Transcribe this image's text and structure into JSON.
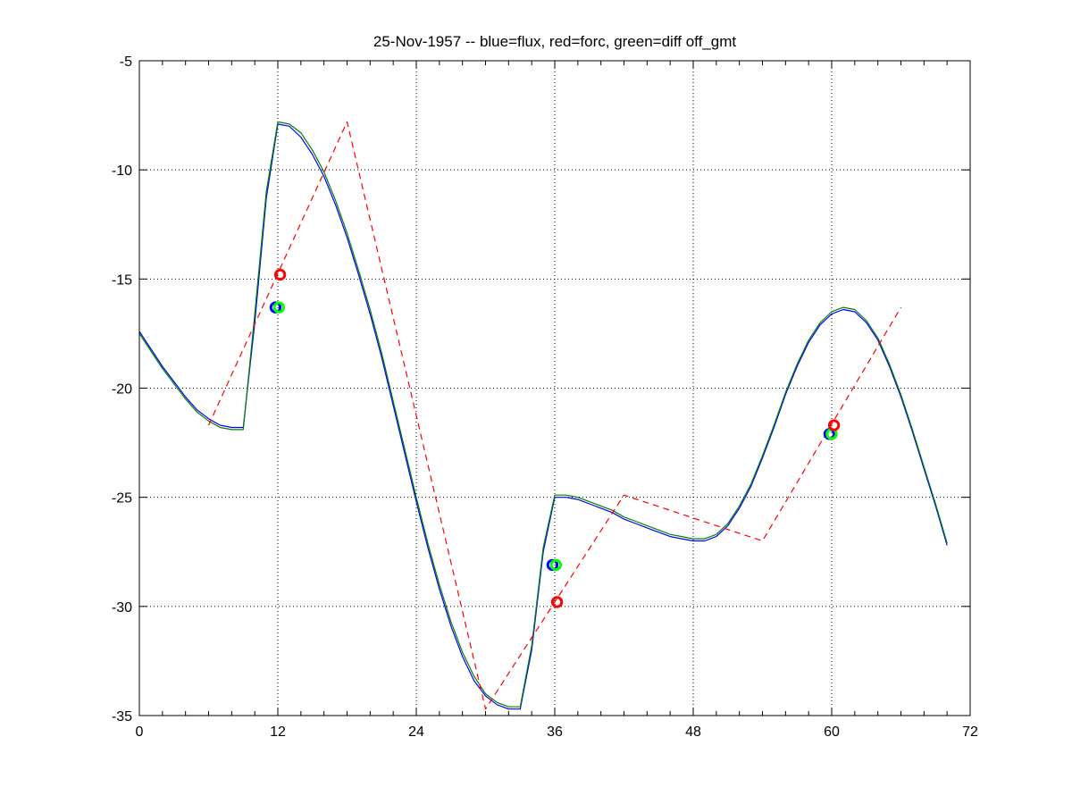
{
  "chart_data": {
    "type": "line",
    "title": "25-Nov-1957 -- blue=flux, red=forc, green=diff off_gmt",
    "xlabel": "",
    "ylabel": "",
    "xlim": [
      0,
      72
    ],
    "ylim": [
      -35,
      -5
    ],
    "xticks": [
      0,
      12,
      24,
      36,
      48,
      60,
      72
    ],
    "yticks": [
      -5,
      -10,
      -15,
      -20,
      -25,
      -30,
      -35
    ],
    "grid": true,
    "series": [
      {
        "color": "#0000ff",
        "style": "solid",
        "points": [
          [
            0,
            -17.4
          ],
          [
            1,
            -18.2
          ],
          [
            2,
            -19.0
          ],
          [
            3,
            -19.7
          ],
          [
            4,
            -20.4
          ],
          [
            5,
            -21.0
          ],
          [
            6,
            -21.4
          ],
          [
            7,
            -21.7
          ],
          [
            8,
            -21.8
          ],
          [
            9,
            -21.8
          ],
          [
            10,
            -17.0
          ],
          [
            11,
            -11.3
          ],
          [
            12,
            -7.9
          ],
          [
            13,
            -8.0
          ],
          [
            14,
            -8.5
          ],
          [
            15,
            -9.3
          ],
          [
            16,
            -10.3
          ],
          [
            17,
            -11.6
          ],
          [
            18,
            -13.1
          ],
          [
            19,
            -14.8
          ],
          [
            20,
            -16.6
          ],
          [
            21,
            -18.6
          ],
          [
            22,
            -20.8
          ],
          [
            23,
            -23.0
          ],
          [
            24,
            -25.2
          ],
          [
            25,
            -27.3
          ],
          [
            26,
            -29.2
          ],
          [
            27,
            -30.9
          ],
          [
            28,
            -32.3
          ],
          [
            29,
            -33.4
          ],
          [
            30,
            -34.1
          ],
          [
            31,
            -34.5
          ],
          [
            32,
            -34.7
          ],
          [
            33,
            -34.7
          ],
          [
            34,
            -32.0
          ],
          [
            35,
            -27.5
          ],
          [
            36,
            -25.0
          ],
          [
            37,
            -25.0
          ],
          [
            38,
            -25.1
          ],
          [
            39,
            -25.3
          ],
          [
            40,
            -25.5
          ],
          [
            41,
            -25.7
          ],
          [
            42,
            -26.0
          ],
          [
            43,
            -26.2
          ],
          [
            44,
            -26.4
          ],
          [
            45,
            -26.6
          ],
          [
            46,
            -26.8
          ],
          [
            47,
            -26.9
          ],
          [
            48,
            -27.0
          ],
          [
            49,
            -27.0
          ],
          [
            50,
            -26.8
          ],
          [
            51,
            -26.3
          ],
          [
            52,
            -25.5
          ],
          [
            53,
            -24.5
          ],
          [
            54,
            -23.2
          ],
          [
            55,
            -21.8
          ],
          [
            56,
            -20.3
          ],
          [
            57,
            -19.0
          ],
          [
            58,
            -17.9
          ],
          [
            59,
            -17.1
          ],
          [
            60,
            -16.6
          ],
          [
            61,
            -16.4
          ],
          [
            62,
            -16.5
          ],
          [
            63,
            -17.0
          ],
          [
            64,
            -17.8
          ],
          [
            65,
            -19.0
          ],
          [
            66,
            -20.4
          ],
          [
            67,
            -22.0
          ],
          [
            68,
            -23.7
          ],
          [
            69,
            -25.4
          ],
          [
            70,
            -27.2
          ]
        ]
      },
      {
        "color": "#008000",
        "style": "solid",
        "points": [
          [
            0,
            -17.5
          ],
          [
            1,
            -18.3
          ],
          [
            2,
            -19.1
          ],
          [
            3,
            -19.8
          ],
          [
            4,
            -20.5
          ],
          [
            5,
            -21.1
          ],
          [
            6,
            -21.5
          ],
          [
            7,
            -21.8
          ],
          [
            8,
            -21.9
          ],
          [
            9,
            -21.9
          ],
          [
            10,
            -16.6
          ],
          [
            11,
            -11.0
          ],
          [
            12,
            -7.8
          ],
          [
            13,
            -7.9
          ],
          [
            14,
            -8.3
          ],
          [
            15,
            -9.1
          ],
          [
            16,
            -10.1
          ],
          [
            17,
            -11.4
          ],
          [
            18,
            -12.9
          ],
          [
            19,
            -14.6
          ],
          [
            20,
            -16.4
          ],
          [
            21,
            -18.4
          ],
          [
            22,
            -20.6
          ],
          [
            23,
            -22.8
          ],
          [
            24,
            -25.0
          ],
          [
            25,
            -27.1
          ],
          [
            26,
            -29.0
          ],
          [
            27,
            -30.7
          ],
          [
            28,
            -32.1
          ],
          [
            29,
            -33.2
          ],
          [
            30,
            -34.0
          ],
          [
            31,
            -34.4
          ],
          [
            32,
            -34.6
          ],
          [
            33,
            -34.6
          ],
          [
            34,
            -31.8
          ],
          [
            35,
            -27.3
          ],
          [
            36,
            -24.9
          ],
          [
            37,
            -24.9
          ],
          [
            38,
            -25.0
          ],
          [
            39,
            -25.2
          ],
          [
            40,
            -25.4
          ],
          [
            41,
            -25.6
          ],
          [
            42,
            -25.9
          ],
          [
            43,
            -26.1
          ],
          [
            44,
            -26.3
          ],
          [
            45,
            -26.5
          ],
          [
            46,
            -26.7
          ],
          [
            47,
            -26.8
          ],
          [
            48,
            -26.9
          ],
          [
            49,
            -26.9
          ],
          [
            50,
            -26.7
          ],
          [
            51,
            -26.2
          ],
          [
            52,
            -25.4
          ],
          [
            53,
            -24.4
          ],
          [
            54,
            -23.1
          ],
          [
            55,
            -21.7
          ],
          [
            56,
            -20.2
          ],
          [
            57,
            -18.9
          ],
          [
            58,
            -17.8
          ],
          [
            59,
            -17.0
          ],
          [
            60,
            -16.5
          ],
          [
            61,
            -16.3
          ],
          [
            62,
            -16.4
          ],
          [
            63,
            -16.9
          ],
          [
            64,
            -17.7
          ],
          [
            65,
            -18.9
          ],
          [
            66,
            -20.3
          ],
          [
            67,
            -21.9
          ],
          [
            68,
            -23.6
          ],
          [
            69,
            -25.3
          ],
          [
            70,
            -27.1
          ]
        ]
      },
      {
        "color": "#ff0000",
        "style": "dashed",
        "points": [
          [
            6,
            -21.7
          ],
          [
            18,
            -7.8
          ],
          [
            30,
            -34.7
          ],
          [
            42,
            -24.9
          ],
          [
            54,
            -27.0
          ],
          [
            66,
            -16.3
          ]
        ]
      }
    ],
    "markers": [
      {
        "color": "#0000ff",
        "x": 11.8,
        "y": -16.3
      },
      {
        "color": "#00ff00",
        "x": 12.1,
        "y": -16.3
      },
      {
        "color": "#ff0000",
        "x": 12.2,
        "y": -14.8
      },
      {
        "color": "#0000ff",
        "x": 35.8,
        "y": -28.1
      },
      {
        "color": "#00ff00",
        "x": 36.1,
        "y": -28.1
      },
      {
        "color": "#ff0000",
        "x": 36.2,
        "y": -29.8
      },
      {
        "color": "#0000ff",
        "x": 59.8,
        "y": -22.1
      },
      {
        "color": "#00ff00",
        "x": 60.0,
        "y": -22.1
      },
      {
        "color": "#ff0000",
        "x": 60.2,
        "y": -21.7
      }
    ]
  }
}
